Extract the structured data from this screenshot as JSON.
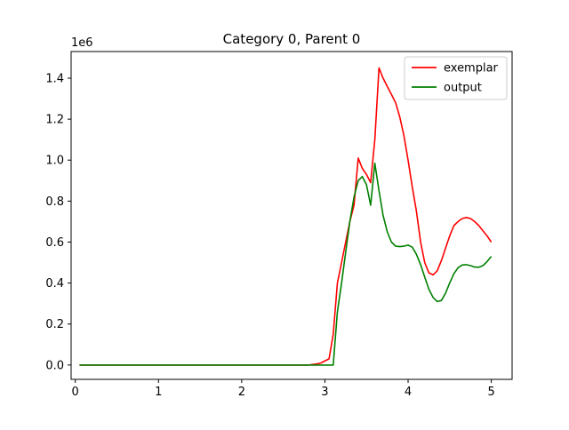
{
  "chart_data": {
    "type": "line",
    "title": "Category 0, Parent 0",
    "xlabel": "",
    "ylabel": "",
    "y_offset_label": "1e6",
    "xlim": [
      -0.05,
      5.25
    ],
    "ylim": [
      -0.07,
      1.53
    ],
    "x_ticks": [
      0,
      1,
      2,
      3,
      4,
      5
    ],
    "x_tick_labels": [
      "0",
      "1",
      "2",
      "3",
      "4",
      "5"
    ],
    "y_ticks": [
      0.0,
      0.2,
      0.4,
      0.6,
      0.8,
      1.0,
      1.2,
      1.4
    ],
    "y_tick_labels": [
      "0.0",
      "0.2",
      "0.4",
      "0.6",
      "0.8",
      "1.0",
      "1.2",
      "1.4"
    ],
    "grid": false,
    "legend_position": "top-right",
    "series": [
      {
        "name": "exemplar",
        "color": "#ff0000",
        "points": [
          [
            0.05,
            0.0
          ],
          [
            0.5,
            0.0
          ],
          [
            1.0,
            0.0
          ],
          [
            1.5,
            0.0
          ],
          [
            2.0,
            0.0
          ],
          [
            2.5,
            0.0
          ],
          [
            2.8,
            0.0
          ],
          [
            2.9,
            0.005
          ],
          [
            2.95,
            0.01
          ],
          [
            3.05,
            0.03
          ],
          [
            3.1,
            0.15
          ],
          [
            3.15,
            0.4
          ],
          [
            3.2,
            0.5
          ],
          [
            3.25,
            0.6
          ],
          [
            3.3,
            0.7
          ],
          [
            3.35,
            0.78
          ],
          [
            3.4,
            1.01
          ],
          [
            3.45,
            0.96
          ],
          [
            3.5,
            0.93
          ],
          [
            3.55,
            0.89
          ],
          [
            3.6,
            1.1
          ],
          [
            3.65,
            1.45
          ],
          [
            3.7,
            1.4
          ],
          [
            3.75,
            1.36
          ],
          [
            3.8,
            1.32
          ],
          [
            3.85,
            1.28
          ],
          [
            3.9,
            1.21
          ],
          [
            3.95,
            1.12
          ],
          [
            4.0,
            1.0
          ],
          [
            4.05,
            0.87
          ],
          [
            4.1,
            0.75
          ],
          [
            4.15,
            0.6
          ],
          [
            4.2,
            0.5
          ],
          [
            4.25,
            0.45
          ],
          [
            4.3,
            0.44
          ],
          [
            4.35,
            0.46
          ],
          [
            4.4,
            0.51
          ],
          [
            4.45,
            0.57
          ],
          [
            4.5,
            0.63
          ],
          [
            4.55,
            0.68
          ],
          [
            4.6,
            0.7
          ],
          [
            4.65,
            0.715
          ],
          [
            4.7,
            0.72
          ],
          [
            4.75,
            0.715
          ],
          [
            4.8,
            0.7
          ],
          [
            4.85,
            0.68
          ],
          [
            4.9,
            0.655
          ],
          [
            4.95,
            0.63
          ],
          [
            5.0,
            0.6
          ]
        ]
      },
      {
        "name": "output",
        "color": "#008000",
        "points": [
          [
            0.05,
            0.0
          ],
          [
            0.5,
            0.0
          ],
          [
            1.0,
            0.0
          ],
          [
            1.5,
            0.0
          ],
          [
            2.0,
            0.0
          ],
          [
            2.5,
            0.0
          ],
          [
            3.0,
            0.0
          ],
          [
            3.1,
            0.0
          ],
          [
            3.15,
            0.26
          ],
          [
            3.2,
            0.4
          ],
          [
            3.25,
            0.55
          ],
          [
            3.3,
            0.7
          ],
          [
            3.35,
            0.82
          ],
          [
            3.4,
            0.9
          ],
          [
            3.45,
            0.92
          ],
          [
            3.5,
            0.88
          ],
          [
            3.55,
            0.78
          ],
          [
            3.6,
            0.985
          ],
          [
            3.65,
            0.85
          ],
          [
            3.7,
            0.73
          ],
          [
            3.75,
            0.65
          ],
          [
            3.8,
            0.6
          ],
          [
            3.85,
            0.58
          ],
          [
            3.9,
            0.578
          ],
          [
            3.95,
            0.58
          ],
          [
            4.0,
            0.585
          ],
          [
            4.05,
            0.575
          ],
          [
            4.1,
            0.54
          ],
          [
            4.15,
            0.49
          ],
          [
            4.2,
            0.43
          ],
          [
            4.25,
            0.37
          ],
          [
            4.3,
            0.33
          ],
          [
            4.35,
            0.31
          ],
          [
            4.4,
            0.315
          ],
          [
            4.45,
            0.35
          ],
          [
            4.5,
            0.4
          ],
          [
            4.55,
            0.445
          ],
          [
            4.6,
            0.475
          ],
          [
            4.65,
            0.488
          ],
          [
            4.7,
            0.49
          ],
          [
            4.75,
            0.485
          ],
          [
            4.8,
            0.478
          ],
          [
            4.85,
            0.477
          ],
          [
            4.9,
            0.485
          ],
          [
            4.95,
            0.505
          ],
          [
            5.0,
            0.53
          ]
        ]
      }
    ]
  }
}
